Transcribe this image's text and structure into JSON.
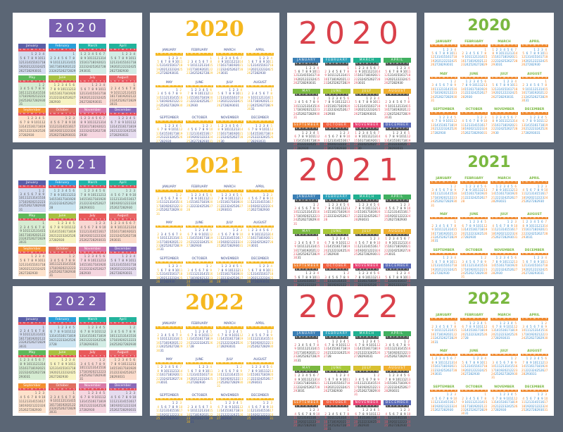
{
  "years": [
    "2020",
    "2021",
    "2022"
  ],
  "months_title": [
    "January",
    "February",
    "March",
    "April",
    "May",
    "June",
    "July",
    "August",
    "September",
    "October",
    "November",
    "December"
  ],
  "months_upper": [
    "JANUARY",
    "FEBRUARY",
    "MARCH",
    "APRIL",
    "MAY",
    "JUNE",
    "JULY",
    "AUGUST",
    "SEPTEMBER",
    "OCTOBER",
    "NOVEMBER",
    "DECEMBER"
  ],
  "weekdays": [
    "S",
    "M",
    "T",
    "W",
    "T",
    "F",
    "S"
  ],
  "styles": [
    {
      "name": "pastel-blocks",
      "year_color": "#ffffff",
      "year_box": "#7a5fb0",
      "weekday_strip": "#e8505c",
      "header_colors": [
        "#5a5fa8",
        "#2a9fd8",
        "#20b5a8",
        "#22b39c",
        "#5fb85a",
        "#a8c040",
        "#e85a5a",
        "#e86565",
        "#f39030",
        "#e07060",
        "#d87aa8",
        "#8a6ab8"
      ],
      "body_colors": [
        "#d3dcf0",
        "#cde6f2",
        "#d2ece4",
        "#d2ece4",
        "#d6ecd2",
        "#f7f3c2",
        "#f9d8d3",
        "#fbdccc",
        "#fde2cc",
        "#f6d8cc",
        "#f5d6e0",
        "#e6dcef"
      ],
      "day_color": "#555555"
    },
    {
      "name": "yellow-serif",
      "year_color": "#f5b820",
      "bar": "#f5b820",
      "month_color": "#3a4a8a",
      "day_color": "#3a4a8a",
      "weekend_color": "#f5b820"
    },
    {
      "name": "colorful-bars",
      "year_color": "#d9404a",
      "weekday_strip": "#555555",
      "day_color": "#333333",
      "weekend_color": "#e05060",
      "header_colors": [
        "#3a7fb5",
        "#2aa0b8",
        "#20b090",
        "#40b060",
        "#7ab840",
        "#a8c838",
        "#d8c030",
        "#f0b030",
        "#f08030",
        "#f06040",
        "#e84070",
        "#5a6ab8"
      ]
    },
    {
      "name": "green-orange",
      "year_color": "#7ab840",
      "month_color": "#7ab840",
      "bar": "#f08a30",
      "day_color": "#3a8ac8",
      "weekend_color": "#f08a30"
    }
  ]
}
